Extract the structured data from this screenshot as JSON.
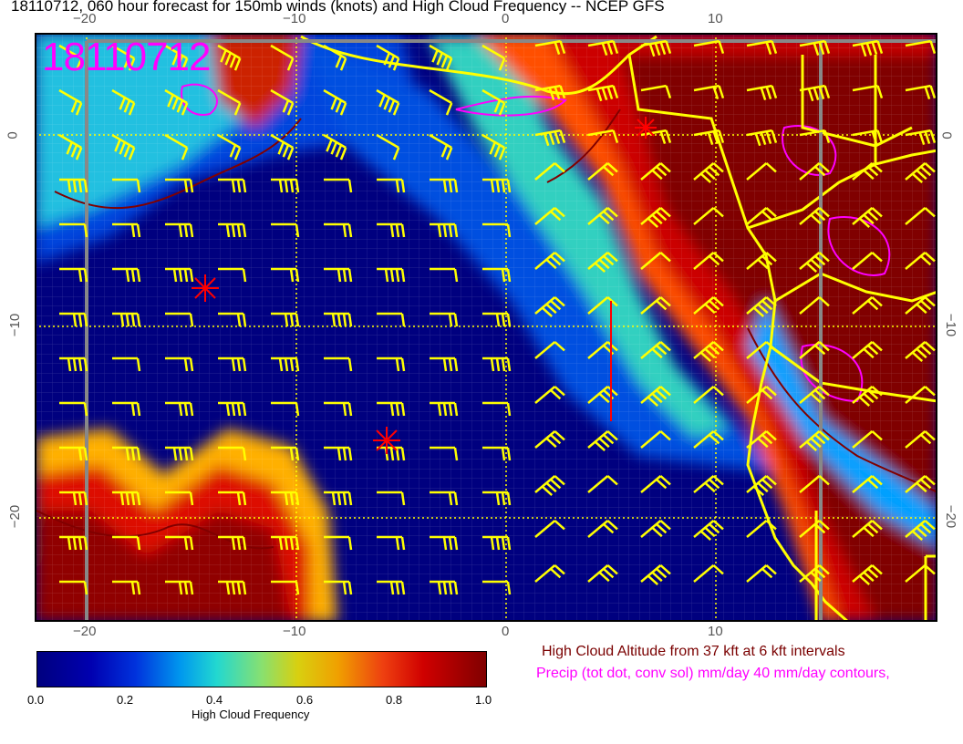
{
  "title": "18110712, 060 hour forecast for 150mb winds (knots) and High Cloud Frequency -- NCEP GFS",
  "stamp": "18110712",
  "map": {
    "lon_ticks": [
      "−20",
      "−10",
      "0",
      "10"
    ],
    "lat_ticks": [
      "0",
      "−10",
      "−20"
    ],
    "colors": {
      "ocean_clear": "#00007f",
      "coastline": "#ffff00",
      "barbs": "#ffff00",
      "precip": "#ff00ff",
      "cloud_altitude": "#7a0000",
      "storm_marker": "#ff0000"
    }
  },
  "colorbar": {
    "ticks": [
      "0.0",
      "0.2",
      "0.4",
      "0.6",
      "0.8",
      "1.0"
    ],
    "label": "High Cloud Frequency"
  },
  "legend": {
    "cloud_altitude": "High Cloud Altitude from 37 kft at 6 kft intervals",
    "precip": "Precip (tot dot, conv sol) mm/day 40 mm/day contours,"
  }
}
